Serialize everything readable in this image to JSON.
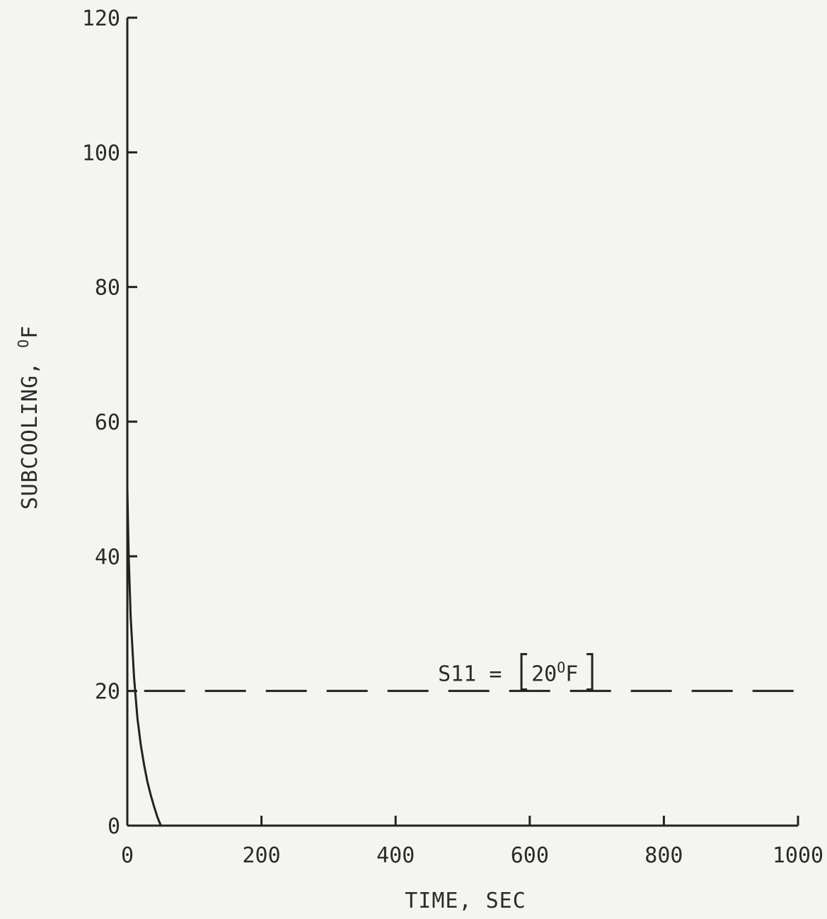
{
  "chart_data": {
    "type": "line",
    "title": "",
    "xlabel": "TIME, SEC",
    "ylabel": "SUBCOOLING, ",
    "ylabel_unit_sup": "O",
    "ylabel_unit": "F",
    "xlim": [
      0,
      1000
    ],
    "ylim": [
      0,
      120
    ],
    "xticks": [
      0,
      200,
      400,
      600,
      800,
      1000
    ],
    "yticks": [
      0,
      20,
      40,
      60,
      80,
      100,
      120
    ],
    "xtick_labels": [
      "0",
      "200",
      "400",
      "600",
      "800",
      "1000"
    ],
    "ytick_labels": [
      "0",
      "20",
      "40",
      "60",
      "80",
      "100",
      "120"
    ],
    "grid": false,
    "legend": "none",
    "series": [
      {
        "style": "solid",
        "x": [
          0,
          2,
          5,
          10,
          15,
          20,
          25,
          30,
          35,
          40,
          45,
          50,
          60,
          100,
          200,
          400,
          600,
          800,
          1000
        ],
        "y": [
          50,
          40,
          31,
          22,
          16,
          12,
          9,
          6.5,
          4.5,
          2.8,
          1.2,
          0,
          0,
          0,
          0,
          0,
          0,
          0,
          0
        ]
      }
    ],
    "reference_lines": [
      {
        "y": 20,
        "style": "dashed",
        "x_start": 25,
        "x_end": 1000
      }
    ],
    "annotations": [
      {
        "text_main": "S11 = ",
        "bracket_value": "20",
        "bracket_sup": "O",
        "bracket_unit": "F",
        "x": 460,
        "y": 20
      }
    ]
  }
}
